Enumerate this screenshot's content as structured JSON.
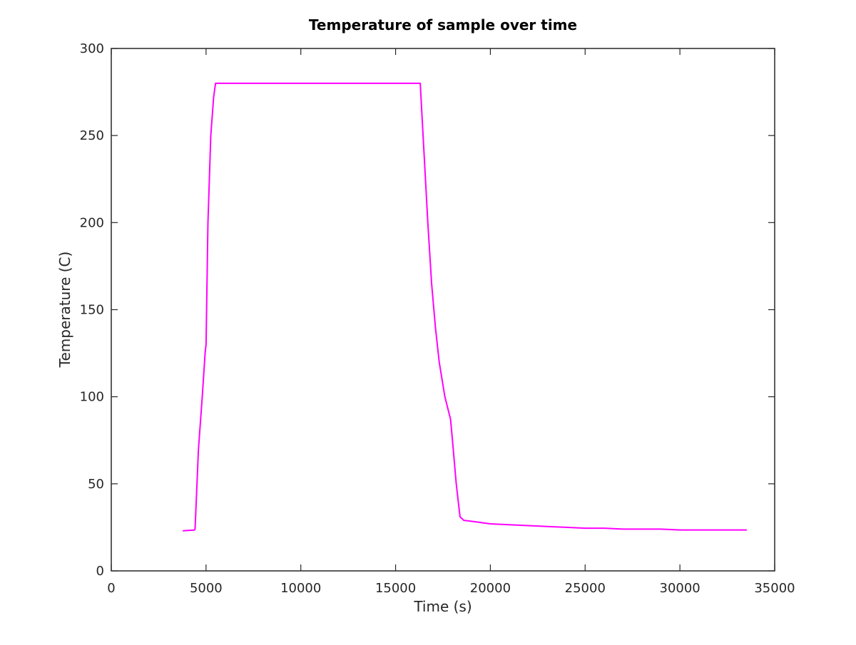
{
  "chart_data": {
    "type": "line",
    "title": "Temperature of sample over time",
    "xlabel": "Time (s)",
    "ylabel": "Temperature (C)",
    "xlim": [
      0,
      35000
    ],
    "ylim": [
      0,
      300
    ],
    "xticks": [
      0,
      5000,
      10000,
      15000,
      20000,
      25000,
      30000,
      35000
    ],
    "yticks": [
      0,
      50,
      100,
      150,
      200,
      250,
      300
    ],
    "xtick_labels": [
      "0",
      "5000",
      "10000",
      "15000",
      "20000",
      "25000",
      "30000",
      "35000"
    ],
    "ytick_labels": [
      "0",
      "50",
      "100",
      "150",
      "200",
      "250",
      "300"
    ],
    "grid": false,
    "series": [
      {
        "color": "#ff00ff",
        "x": [
          3800,
          4400,
          4420,
          4600,
          4800,
          4950,
          5000,
          5100,
          5250,
          5400,
          5500,
          7000,
          10000,
          13000,
          16000,
          16300,
          16500,
          16700,
          16900,
          17100,
          17300,
          17600,
          17900,
          18000,
          18200,
          18400,
          18600,
          19000,
          20000,
          21000,
          22000,
          23000,
          24000,
          25000,
          26000,
          27000,
          28000,
          29000,
          30000,
          31000,
          32000,
          33000,
          33500
        ],
        "y": [
          23,
          23.5,
          24,
          70,
          100,
          125,
          130,
          200,
          250,
          272,
          280,
          280,
          280,
          280,
          280,
          280,
          240,
          200,
          165,
          140,
          120,
          100,
          87,
          75,
          50,
          31,
          29,
          28.5,
          27,
          26.5,
          26,
          25.5,
          25,
          24.5,
          24.5,
          24,
          24,
          24,
          23.5,
          23.5,
          23.5,
          23.5,
          23.5
        ]
      }
    ]
  }
}
